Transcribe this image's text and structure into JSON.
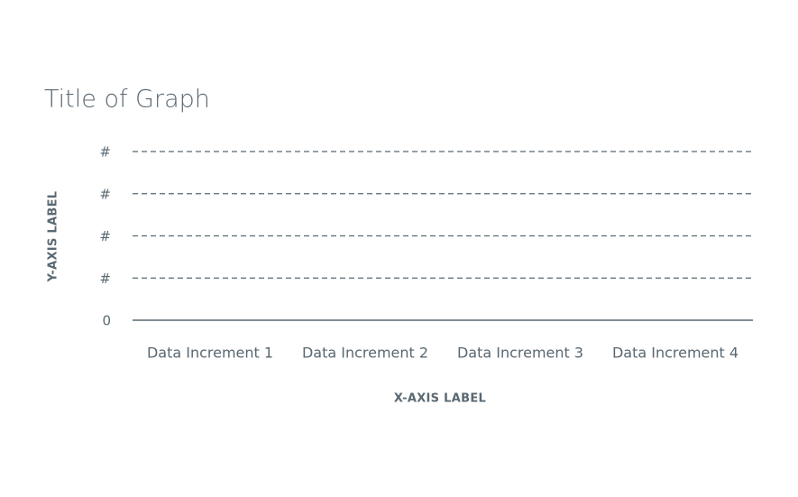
{
  "chart_data": {
    "type": "bar",
    "title": "Title of Graph",
    "x_label": "X-AXIS LABEL",
    "y_label": "Y-AXIS LABEL",
    "categories": [
      "Data Increment 1",
      "Data Increment 2",
      "Data Increment 3",
      "Data Increment 4"
    ],
    "ylim": [
      0,
      4
    ],
    "yticks": [
      0,
      {
        "value": 1,
        "label": "#"
      },
      {
        "value": 2,
        "label": "#"
      },
      {
        "value": 3,
        "label": "#"
      },
      {
        "value": 4,
        "label": "#"
      }
    ],
    "grid": true,
    "color": "#5a6872"
  }
}
